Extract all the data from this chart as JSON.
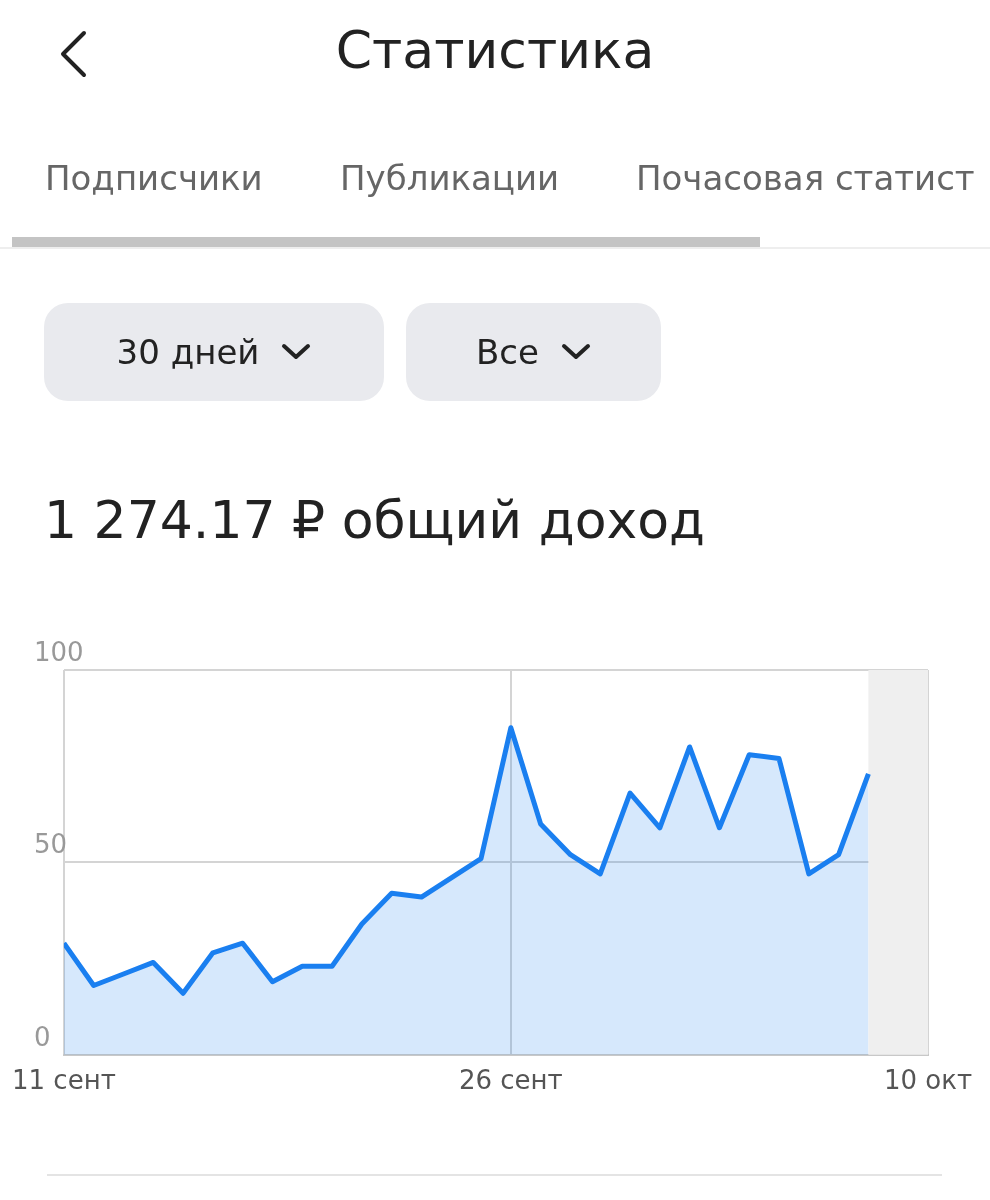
{
  "chart_data": {
    "type": "area",
    "title": "1 274.17 ₽ общий доход",
    "annotations": [
      "Статистика",
      "Подписчики",
      "Публикации",
      "Почасовая статист",
      "30 дней",
      "Все"
    ],
    "x": [
      "--09-11",
      "--09-12",
      "--09-13",
      "--09-14",
      "--09-15",
      "--09-16",
      "--09-17",
      "--09-18",
      "--09-19",
      "--09-20",
      "--09-21",
      "--09-22",
      "--09-23",
      "--09-24",
      "--09-25",
      "--09-26",
      "--09-27",
      "--09-28",
      "--09-29",
      "--09-30",
      "--10-01",
      "--10-02",
      "--10-03",
      "--10-04",
      "--10-05",
      "--10-06",
      "--10-07",
      "--10-08"
    ],
    "series": [
      {
        "color": "#1a7ff0",
        "values": [
          29,
          18,
          21,
          24,
          16,
          26.5,
          29,
          19,
          23,
          23,
          34,
          42,
          41,
          46,
          51,
          85,
          60,
          52,
          47,
          68,
          59,
          80,
          59,
          78,
          77,
          47,
          52,
          73
        ]
      }
    ],
    "xlim": [
      "--09-11",
      "--10-10"
    ],
    "xticks": [
      {
        "value": "--09-11",
        "label": "11 сент"
      },
      {
        "value": "--09-26",
        "label": "26 сент"
      },
      {
        "value": "--10-10",
        "label": "10 окт"
      }
    ],
    "ylim": [
      0,
      100
    ],
    "yticks": [
      0,
      50,
      100
    ],
    "bands": [
      {
        "axis": "x",
        "from": "--10-08",
        "to": "--10-10",
        "color": "#efefef"
      }
    ],
    "grid": true,
    "marker": "none",
    "line_style": "solid"
  }
}
